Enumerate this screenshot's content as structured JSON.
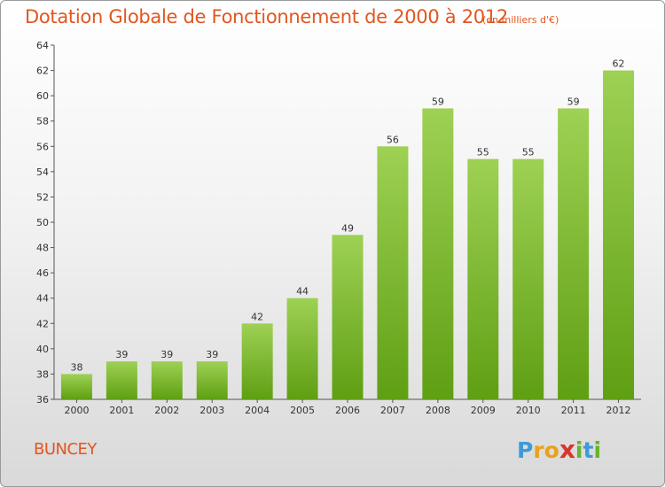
{
  "title": "Dotation Globale de Fonctionnement de 2000 à 2012",
  "subtitle": "(en milliers d'€)",
  "commune": "BUNCEY",
  "logo": {
    "letters": [
      "P",
      "r",
      "o",
      "x",
      "i",
      "t",
      "i"
    ],
    "colors": [
      "#3e9ad8",
      "#e8a21b",
      "#e8a21b",
      "#d9362b",
      "#66b32e",
      "#3e9ad8",
      "#66b32e"
    ]
  },
  "colors": {
    "bar_light": "#9ed154",
    "bar_dark": "#5f9f13",
    "title": "#e2561f"
  },
  "chart_data": {
    "type": "bar",
    "title": "Dotation Globale de Fonctionnement de 2000 à 2012",
    "subtitle": "(en milliers d'€)",
    "categories": [
      "2000",
      "2001",
      "2002",
      "2003",
      "2004",
      "2005",
      "2006",
      "2007",
      "2008",
      "2009",
      "2010",
      "2011",
      "2012"
    ],
    "values": [
      38,
      39,
      39,
      39,
      42,
      44,
      49,
      56,
      59,
      55,
      55,
      59,
      62
    ],
    "ylim": [
      36,
      64
    ],
    "yticks": [
      36,
      38,
      40,
      42,
      44,
      46,
      48,
      50,
      52,
      54,
      56,
      58,
      60,
      62,
      64
    ],
    "grid": false,
    "legend": "none"
  }
}
